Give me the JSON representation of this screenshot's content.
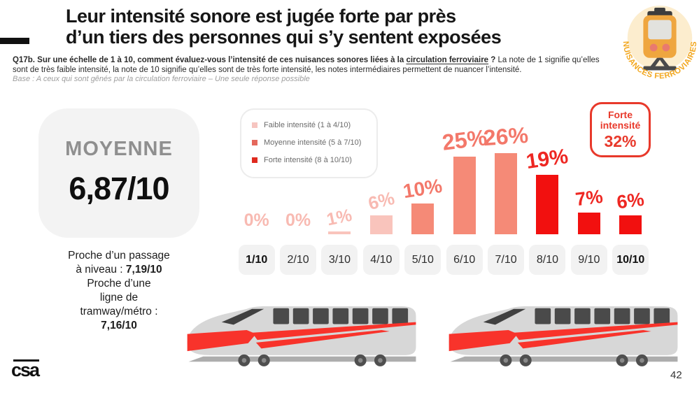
{
  "slide": {
    "title_line1": "Leur intensité sonore est jugée forte par près",
    "title_line2": "d’un tiers des personnes qui s’y sentent exposées",
    "question_bold_prefix": "Q17b. Sur une échelle de 1 à 10, comment évaluez-vous l’intensité de ces nuisances sonores liées à la ",
    "question_underlined": "circulation ferroviaire",
    "question_bold_suffix": " ?",
    "question_regular": " La note de 1 signifie qu’elles sont de très faible intensité, la note de 10 signifie qu’elles sont de très forte intensité, les notes intermédiaires permettent de nuancer l’intensité.",
    "base_note": "Base : A ceux qui sont gênés par la circulation ferroviaire – Une seule réponse possible",
    "badge_text": "NUISANCES FERROVIAIRES",
    "logo_text": "csa",
    "page_number": "42"
  },
  "icons": {
    "badge": "train-front-icon",
    "illustrations": "high-speed-train-icon"
  },
  "average": {
    "label": "MOYENNE",
    "value": "6,87/10",
    "details": {
      "line1": "Proche d’un passage",
      "line2_label": "à niveau : ",
      "line2_value": "7,19/10",
      "line3": "Proche d’une",
      "line4": "ligne de",
      "line5": "tramway/métro :",
      "line6_value": "7,16/10"
    }
  },
  "legend": {
    "items": [
      {
        "label": "Faible intensité (1 à 4/10)",
        "color": "#F6C5C0"
      },
      {
        "label": "Moyenne intensité (5 à 7/10)",
        "color": "#E4685C"
      },
      {
        "label": "Forte intensité (8 à 10/10)",
        "color": "#DF2A1F"
      }
    ]
  },
  "highlight_box": {
    "line1": "Forte",
    "line2": "intensité",
    "value": "32%",
    "color": "#E8392B"
  },
  "chart_data": {
    "type": "bar",
    "title": "Intensité des nuisances sonores liées à la circulation ferroviaire (note sur 10)",
    "categories": [
      "1/10",
      "2/10",
      "3/10",
      "4/10",
      "5/10",
      "6/10",
      "7/10",
      "8/10",
      "9/10",
      "10/10"
    ],
    "values": [
      0,
      0,
      1,
      6,
      10,
      25,
      26,
      19,
      7,
      6
    ],
    "unit": "%",
    "ylim": [
      0,
      30
    ],
    "grid": false,
    "legend_position": "top-left",
    "emphasized_categories": [
      "1/10",
      "10/10"
    ],
    "bands": [
      {
        "name": "Faible intensité",
        "range": [
          1,
          4
        ],
        "bar_color": "#F9C4BC",
        "label_color": "#F8BAB2"
      },
      {
        "name": "Moyenne intensité",
        "range": [
          5,
          7
        ],
        "bar_color": "#F58A77",
        "label_color": "#F3786A"
      },
      {
        "name": "Forte intensité",
        "range": [
          8,
          10
        ],
        "bar_color": "#F2100F",
        "label_color": "#EE2722"
      }
    ]
  }
}
